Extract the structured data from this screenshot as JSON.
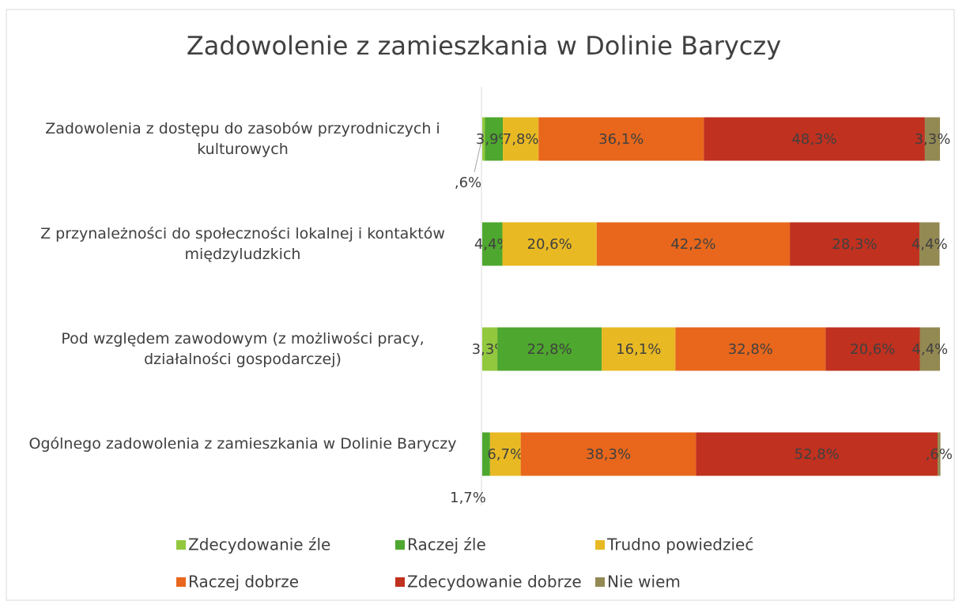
{
  "chart_data": {
    "type": "stacked_bar_horizontal",
    "title": "Zadowolenie z zamieszkania w Dolinie Baryczy",
    "categories": [
      "Zadowolenia z dostępu do zasobów przyrodniczych i kulturowych",
      "Z przynależności do społeczności lokalnej i kontaktów międzyludzkich",
      "Pod względem zawodowym (z możliwości pracy, działalności gospodarczej)",
      "Ogólnego zadowolenia z zamieszkania w Dolinie Baryczy"
    ],
    "xlim": [
      0,
      100
    ],
    "series": [
      {
        "name": "Zdecydowanie źle",
        "color": "#92c83e",
        "values": [
          0.6,
          null,
          3.3,
          null
        ],
        "value_labels": [
          ",6%",
          null,
          "3,3%",
          null
        ]
      },
      {
        "name": "Raczej źle",
        "color": "#4ea72e",
        "values": [
          3.9,
          4.4,
          22.8,
          1.7
        ],
        "value_labels": [
          "3,9%",
          "4,4%",
          "22,8%",
          "1,7%"
        ]
      },
      {
        "name": "Trudno powiedzieć",
        "color": "#e8b923",
        "values": [
          7.8,
          20.6,
          16.1,
          6.7
        ],
        "value_labels": [
          "7,8%",
          "20,6%",
          "16,1%",
          "6,7%"
        ]
      },
      {
        "name": "Raczej dobrze",
        "color": "#e8671c",
        "values": [
          36.1,
          42.2,
          32.8,
          38.3
        ],
        "value_labels": [
          "36,1%",
          "42,2%",
          "32,8%",
          "38,3%"
        ]
      },
      {
        "name": "Zdecydowanie dobrze",
        "color": "#c0311f",
        "values": [
          48.3,
          28.3,
          20.6,
          52.8
        ],
        "value_labels": [
          "48,3%",
          "28,3%",
          "20,6%",
          "52,8%"
        ]
      },
      {
        "name": "Nie wiem",
        "color": "#938953",
        "values": [
          3.3,
          4.4,
          4.4,
          0.6
        ],
        "value_labels": [
          "3,3%",
          "4,4%",
          "4,4%",
          ",6%"
        ]
      }
    ]
  }
}
